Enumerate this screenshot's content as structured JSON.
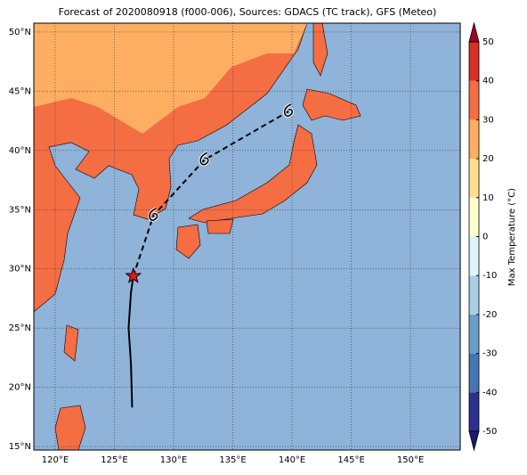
{
  "chart_data": {
    "type": "map",
    "title": "Forecast of 2020080918 (f000-006), Sources: GDACS (TC track), GFS (Meteo)",
    "xlim": [
      118.2,
      154.2
    ],
    "ylim": [
      14.7,
      50.75
    ],
    "xticks": [
      {
        "value": 120,
        "label": "120°E"
      },
      {
        "value": 125,
        "label": "125°E"
      },
      {
        "value": 130,
        "label": "130°E"
      },
      {
        "value": 135,
        "label": "135°E"
      },
      {
        "value": 140,
        "label": "140°E"
      },
      {
        "value": 145,
        "label": "145°E"
      },
      {
        "value": 150,
        "label": "150°E"
      }
    ],
    "yticks": [
      {
        "value": 15,
        "label": "15°N"
      },
      {
        "value": 20,
        "label": "20°N"
      },
      {
        "value": 25,
        "label": "25°N"
      },
      {
        "value": 30,
        "label": "30°N"
      },
      {
        "value": 35,
        "label": "35°N"
      },
      {
        "value": 40,
        "label": "40°N"
      },
      {
        "value": 45,
        "label": "45°N"
      },
      {
        "value": 50,
        "label": "50°N"
      }
    ],
    "grid": true,
    "colorbar": {
      "label": "Max Temperature (°C)",
      "lim": [
        -50,
        50
      ],
      "ticks": [
        -50,
        -40,
        -30,
        -20,
        -10,
        0,
        10,
        20,
        30,
        40,
        50
      ],
      "colors": [
        "#2b2f8f",
        "#4575b4",
        "#6a9fcc",
        "#a9cfe6",
        "#e0f3f8",
        "#ffffd0",
        "#fee090",
        "#fdae61",
        "#f46d43",
        "#d73027"
      ],
      "under": "#1a1d6e",
      "over": "#a50026"
    },
    "track": {
      "x": [
        126.5,
        126.4,
        126.2,
        126.4,
        126.6
      ],
      "y": [
        18.3,
        22,
        25,
        28,
        29.4
      ]
    },
    "forecast": {
      "x": [
        126.6,
        128.3,
        132.6,
        139.7
      ],
      "y": [
        29.4,
        34.5,
        39.2,
        43.3
      ]
    }
  }
}
